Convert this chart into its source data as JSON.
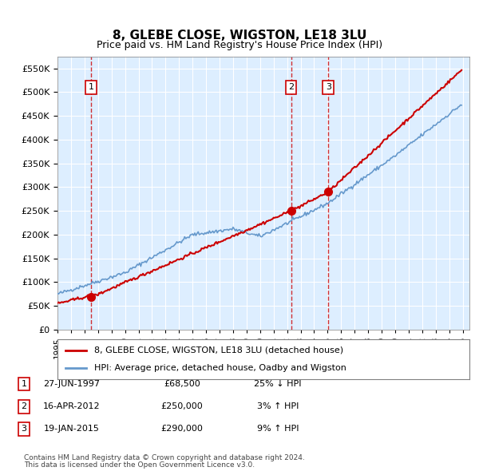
{
  "title": "8, GLEBE CLOSE, WIGSTON, LE18 3LU",
  "subtitle": "Price paid vs. HM Land Registry's House Price Index (HPI)",
  "sale_dates": [
    "1997-06-27",
    "2012-04-16",
    "2015-01-19"
  ],
  "sale_prices": [
    68500,
    250000,
    290000
  ],
  "sale_labels": [
    "1",
    "2",
    "3"
  ],
  "sale_table": [
    [
      "1",
      "27-JUN-1997",
      "£68,500",
      "25% ↓ HPI"
    ],
    [
      "2",
      "16-APR-2012",
      "£250,000",
      "3% ↑ HPI"
    ],
    [
      "3",
      "19-JAN-2015",
      "£290,000",
      "9% ↑ HPI"
    ]
  ],
  "legend_line1": "8, GLEBE CLOSE, WIGSTON, LE18 3LU (detached house)",
  "legend_line2": "HPI: Average price, detached house, Oadby and Wigston",
  "footnote1": "Contains HM Land Registry data © Crown copyright and database right 2024.",
  "footnote2": "This data is licensed under the Open Government Licence v3.0.",
  "hpi_color": "#6699cc",
  "price_color": "#cc0000",
  "dashed_color": "#cc0000",
  "background_color": "#ddeeff",
  "ylim": [
    0,
    575000
  ],
  "yticks": [
    0,
    50000,
    100000,
    150000,
    200000,
    250000,
    300000,
    350000,
    400000,
    450000,
    500000,
    550000
  ],
  "xlim_start": 1995.0,
  "xlim_end": 2025.5
}
